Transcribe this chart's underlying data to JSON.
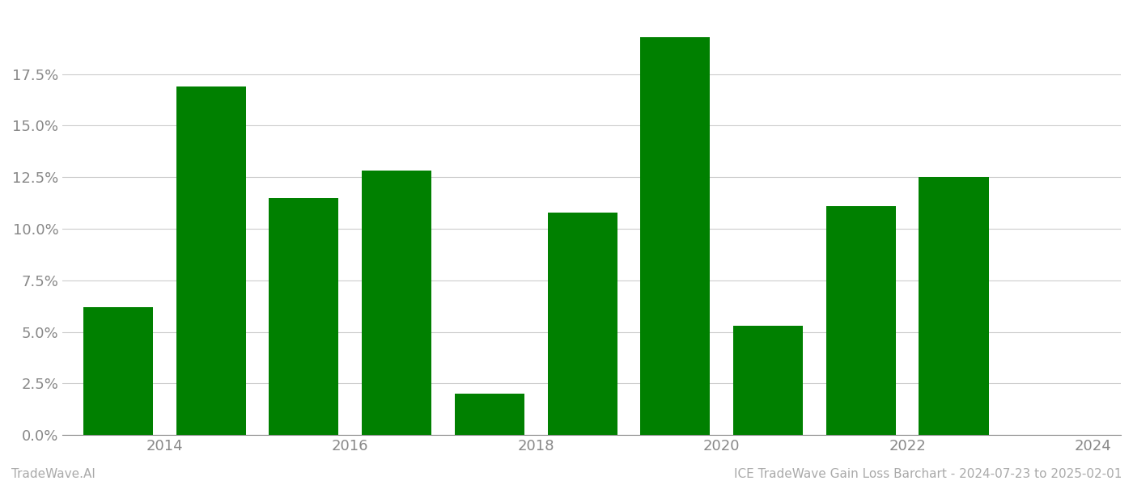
{
  "years": [
    2014,
    2015,
    2016,
    2017,
    2018,
    2019,
    2020,
    2021,
    2022,
    2023
  ],
  "values": [
    0.062,
    0.169,
    0.115,
    0.128,
    0.02,
    0.108,
    0.193,
    0.053,
    0.111,
    0.125
  ],
  "bar_color": "#008000",
  "background_color": "#ffffff",
  "grid_color": "#cccccc",
  "tick_color": "#888888",
  "ylim": [
    0.0,
    0.205
  ],
  "yticks": [
    0.0,
    0.025,
    0.05,
    0.075,
    0.1,
    0.125,
    0.15,
    0.175
  ],
  "xtick_labels": [
    "2014",
    "2016",
    "2018",
    "2020",
    "2022",
    "2024"
  ],
  "xtick_positions": [
    0.5,
    2.5,
    4.5,
    6.5,
    8.5,
    10.5
  ],
  "footer_left": "TradeWave.AI",
  "footer_right": "ICE TradeWave Gain Loss Barchart - 2024-07-23 to 2025-02-01",
  "footer_color": "#aaaaaa",
  "footer_fontsize": 11,
  "tick_fontsize": 13,
  "bar_width": 0.75
}
